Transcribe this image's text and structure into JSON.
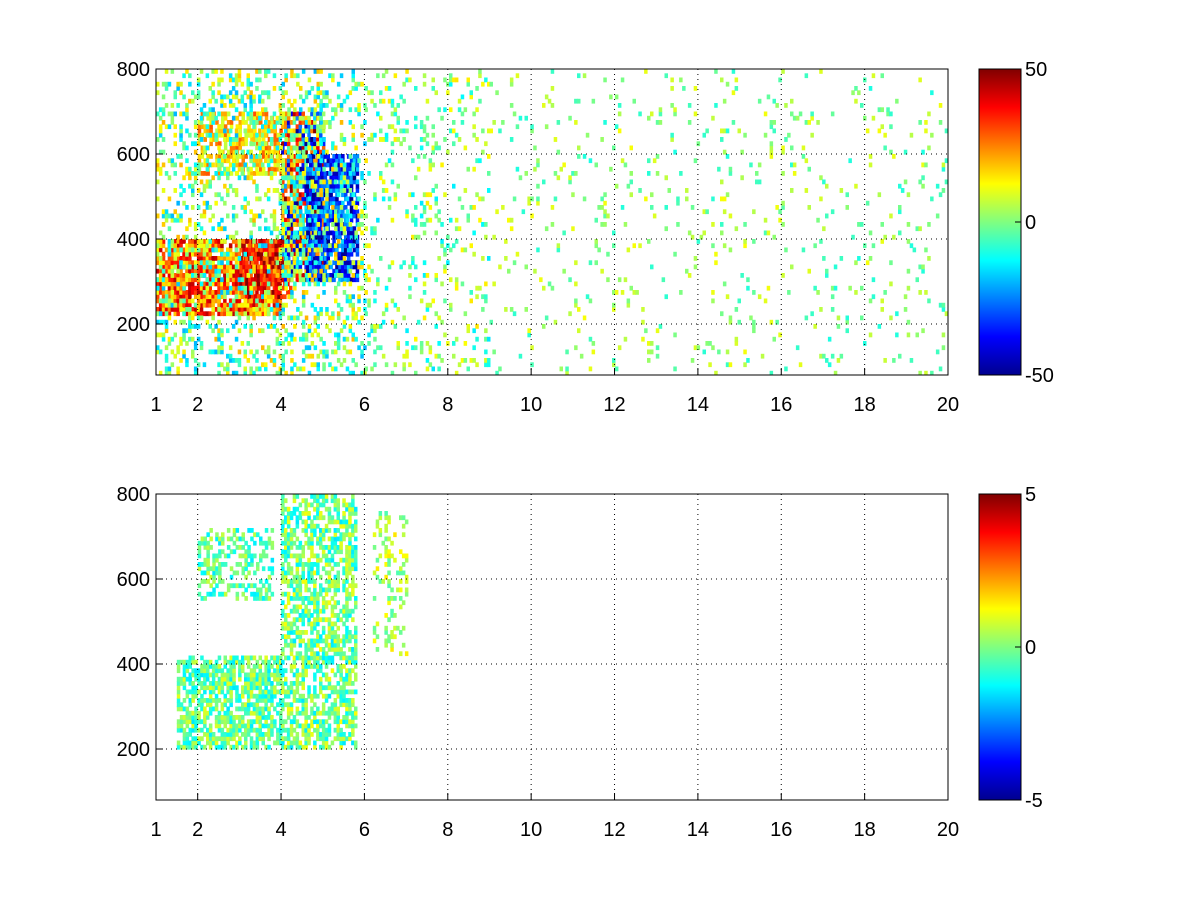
{
  "chart_data": [
    {
      "type": "heatmap",
      "title": "",
      "xlabel": "",
      "ylabel": "",
      "xlim": [
        1,
        20
      ],
      "ylim": [
        80,
        800
      ],
      "x_ticks": [
        1,
        2,
        4,
        6,
        8,
        10,
        12,
        14,
        16,
        18,
        20
      ],
      "y_ticks": [
        200,
        400,
        600,
        800
      ],
      "grid": true,
      "colormap": "jet",
      "colorbar": {
        "range": [
          -50,
          50
        ],
        "ticks": [
          -50,
          0,
          50
        ]
      },
      "value_note": "sparse scatter of colored cells; NaN shown white",
      "regions": [
        {
          "x": [
            1.0,
            4.0
          ],
          "y": [
            220,
            400
          ],
          "value_range": [
            10,
            45
          ],
          "density": 0.85
        },
        {
          "x": [
            3.0,
            4.2
          ],
          "y": [
            260,
            400
          ],
          "value_range": [
            25,
            50
          ],
          "density": 0.8
        },
        {
          "x": [
            4.0,
            5.0
          ],
          "y": [
            300,
            700
          ],
          "value_range": [
            -50,
            50
          ],
          "density": 0.85
        },
        {
          "x": [
            4.6,
            5.8
          ],
          "y": [
            300,
            600
          ],
          "value_range": [
            -50,
            -15
          ],
          "density": 0.8
        },
        {
          "x": [
            2.0,
            4.0
          ],
          "y": [
            550,
            700
          ],
          "value_range": [
            5,
            30
          ],
          "density": 0.6
        },
        {
          "x": [
            1.0,
            6.0
          ],
          "y": [
            80,
            800
          ],
          "value_range": [
            -20,
            20
          ],
          "density": 0.25
        },
        {
          "x": [
            6.0,
            9.0
          ],
          "y": [
            80,
            800
          ],
          "value_range": [
            -15,
            15
          ],
          "density": 0.12
        },
        {
          "x": [
            9.0,
            20.0
          ],
          "y": [
            80,
            800
          ],
          "value_range": [
            -10,
            12
          ],
          "density": 0.05
        }
      ]
    },
    {
      "type": "heatmap",
      "title": "",
      "xlabel": "",
      "ylabel": "",
      "xlim": [
        1,
        20
      ],
      "ylim": [
        80,
        800
      ],
      "x_ticks": [
        1,
        2,
        4,
        6,
        8,
        10,
        12,
        14,
        16,
        18,
        20
      ],
      "y_ticks": [
        200,
        400,
        600,
        800
      ],
      "grid": true,
      "colormap": "jet",
      "colorbar": {
        "range": [
          -5,
          5
        ],
        "ticks": [
          -5,
          0,
          5
        ]
      },
      "value_note": "sparse scatter of colored cells; NaN shown white",
      "regions": [
        {
          "x": [
            1.5,
            4.0
          ],
          "y": [
            200,
            420
          ],
          "value_range": [
            -1.5,
            1.0
          ],
          "density": 0.7
        },
        {
          "x": [
            2.0,
            3.8
          ],
          "y": [
            550,
            720
          ],
          "value_range": [
            -1.5,
            0.8
          ],
          "density": 0.45
        },
        {
          "x": [
            4.0,
            5.8
          ],
          "y": [
            200,
            800
          ],
          "value_range": [
            -1.5,
            1.2
          ],
          "density": 0.6
        },
        {
          "x": [
            6.2,
            7.0
          ],
          "y": [
            420,
            760
          ],
          "value_range": [
            -0.5,
            1.5
          ],
          "density": 0.25
        }
      ]
    }
  ]
}
